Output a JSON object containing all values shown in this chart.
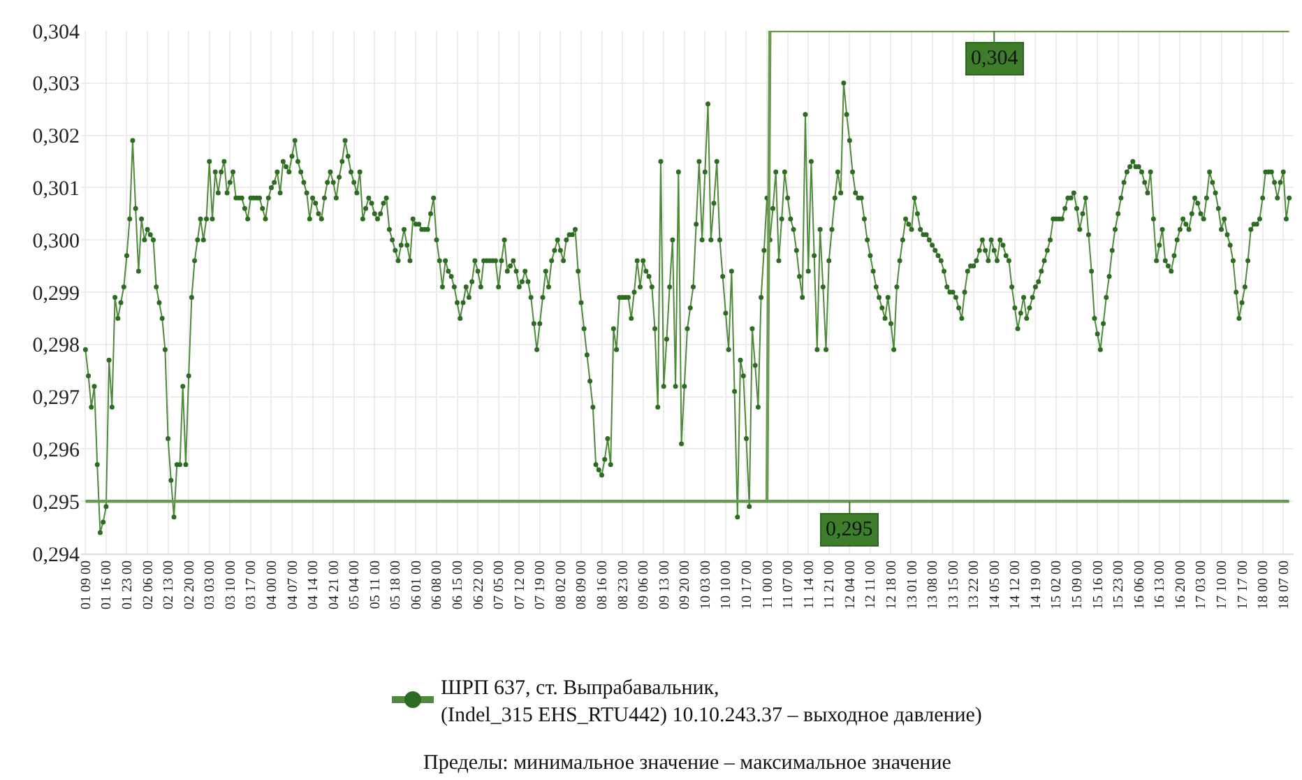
{
  "chart_data": {
    "type": "line",
    "categories": [
      "01 09 00",
      null,
      null,
      null,
      null,
      null,
      null,
      "01 16 00",
      null,
      null,
      null,
      null,
      null,
      null,
      "01 23 00",
      null,
      null,
      null,
      null,
      null,
      null,
      "02 06 00",
      null,
      null,
      null,
      null,
      null,
      null,
      "02 13 00",
      null,
      null,
      null,
      null,
      null,
      null,
      "02 20 00",
      null,
      null,
      null,
      null,
      null,
      null,
      "03 03 00",
      null,
      null,
      null,
      null,
      null,
      null,
      "03 10 00",
      null,
      null,
      null,
      null,
      null,
      null,
      "03 17 00",
      null,
      null,
      null,
      null,
      null,
      null,
      "04 00 00",
      null,
      null,
      null,
      null,
      null,
      null,
      "04 07 00",
      null,
      null,
      null,
      null,
      null,
      null,
      "04 14 00",
      null,
      null,
      null,
      null,
      null,
      null,
      "04 21 00",
      null,
      null,
      null,
      null,
      null,
      null,
      "05 04 00",
      null,
      null,
      null,
      null,
      null,
      null,
      "05 11 00",
      null,
      null,
      null,
      null,
      null,
      null,
      "05 18 00",
      null,
      null,
      null,
      null,
      null,
      null,
      "06 01 00",
      null,
      null,
      null,
      null,
      null,
      null,
      "06 08 00",
      null,
      null,
      null,
      null,
      null,
      null,
      "06 15 00",
      null,
      null,
      null,
      null,
      null,
      null,
      "06 22 00",
      null,
      null,
      null,
      null,
      null,
      null,
      "07 05 00",
      null,
      null,
      null,
      null,
      null,
      null,
      "07 12 00",
      null,
      null,
      null,
      null,
      null,
      null,
      "07 19 00",
      null,
      null,
      null,
      null,
      null,
      null,
      "08 02 00",
      null,
      null,
      null,
      null,
      null,
      null,
      "08 09 00",
      null,
      null,
      null,
      null,
      null,
      null,
      "08 16 00",
      null,
      null,
      null,
      null,
      null,
      null,
      "08 23 00",
      null,
      null,
      null,
      null,
      null,
      null,
      "09 06 00",
      null,
      null,
      null,
      null,
      null,
      null,
      "09 13 00",
      null,
      null,
      null,
      null,
      null,
      null,
      "09 20 00",
      null,
      null,
      null,
      null,
      null,
      null,
      "10 03 00",
      null,
      null,
      null,
      null,
      null,
      null,
      "10 10 00",
      null,
      null,
      null,
      null,
      null,
      null,
      "10 17 00",
      null,
      null,
      null,
      null,
      null,
      null,
      "11 00 00",
      null,
      null,
      null,
      null,
      null,
      null,
      "11 07 00",
      null,
      null,
      null,
      null,
      null,
      null,
      "11 14 00",
      null,
      null,
      null,
      null,
      null,
      null,
      "11 21 00",
      null,
      null,
      null,
      null,
      null,
      null,
      "12 04 00",
      null,
      null,
      null,
      null,
      null,
      null,
      "12 11 00",
      null,
      null,
      null,
      null,
      null,
      null,
      "12 18 00",
      null,
      null,
      null,
      null,
      null,
      null,
      "13 01 00",
      null,
      null,
      null,
      null,
      null,
      null,
      "13 08 00",
      null,
      null,
      null,
      null,
      null,
      null,
      "13 15 00",
      null,
      null,
      null,
      null,
      null,
      null,
      "13 22 00",
      null,
      null,
      null,
      null,
      null,
      null,
      "14 05 00",
      null,
      null,
      null,
      null,
      null,
      null,
      "14 12 00",
      null,
      null,
      null,
      null,
      null,
      null,
      "14 19 00",
      null,
      null,
      null,
      null,
      null,
      null,
      "15 02 00",
      null,
      null,
      null,
      null,
      null,
      null,
      "15 09 00",
      null,
      null,
      null,
      null,
      null,
      null,
      "15 16 00",
      null,
      null,
      null,
      null,
      null,
      null,
      "15 23 00",
      null,
      null,
      null,
      null,
      null,
      null,
      "16 06 00",
      null,
      null,
      null,
      null,
      null,
      null,
      "16 13 00",
      null,
      null,
      null,
      null,
      null,
      null,
      "16 20 00",
      null,
      null,
      null,
      null,
      null,
      null,
      "17 03 00",
      null,
      null,
      null,
      null,
      null,
      null,
      "17 10 00",
      null,
      null,
      null,
      null,
      null,
      null,
      "17 17 00",
      null,
      null,
      null,
      null,
      null,
      null,
      "18 00 00",
      null,
      null,
      null,
      null,
      null,
      null,
      "18 07 00",
      null,
      null
    ],
    "ylim": [
      0.294,
      0.304
    ],
    "yticks": [
      {
        "value": 0.294,
        "label": "0,294"
      },
      {
        "value": 0.295,
        "label": "0,295"
      },
      {
        "value": 0.296,
        "label": "0,296"
      },
      {
        "value": 0.297,
        "label": "0,297"
      },
      {
        "value": 0.298,
        "label": "0,298"
      },
      {
        "value": 0.299,
        "label": "0,299"
      },
      {
        "value": 0.3,
        "label": "0,300"
      },
      {
        "value": 0.301,
        "label": "0,301"
      },
      {
        "value": 0.302,
        "label": "0,302"
      },
      {
        "value": 0.303,
        "label": "0,303"
      },
      {
        "value": 0.304,
        "label": "0,304"
      }
    ],
    "grid": true,
    "legend": "bottom",
    "marker": "circle",
    "line_style": "solid",
    "series": [
      {
        "name": "ШРП 637, ст. Выпрабавальник,\n(Indel_315 EHS_RTU442) 10.10.243.37 – выходное давление)",
        "color": "#4f8a3c",
        "values": [
          0.2979,
          0.2974,
          0.2968,
          0.2972,
          0.2957,
          0.2944,
          0.2946,
          0.2949,
          0.2977,
          0.2968,
          0.2989,
          0.2985,
          0.2988,
          0.2991,
          0.2997,
          0.3004,
          0.3019,
          0.3006,
          0.2994,
          0.3004,
          0.3,
          0.3002,
          0.3001,
          0.3,
          0.2991,
          0.2988,
          0.2985,
          0.2979,
          0.2962,
          0.2954,
          0.2947,
          0.2957,
          0.2957,
          0.2972,
          0.2957,
          0.2974,
          0.2989,
          0.2996,
          0.3,
          0.3004,
          0.3,
          0.3004,
          0.3015,
          0.3004,
          0.3013,
          0.3009,
          0.3013,
          0.3015,
          0.3009,
          0.3011,
          0.3013,
          0.3008,
          0.3008,
          0.3008,
          0.3006,
          0.3004,
          0.3008,
          0.3008,
          0.3008,
          0.3008,
          0.3006,
          0.3004,
          0.3008,
          0.301,
          0.3011,
          0.3013,
          0.3009,
          0.3015,
          0.3014,
          0.3013,
          0.3016,
          0.3019,
          0.3015,
          0.3013,
          0.3011,
          0.3009,
          0.3004,
          0.3008,
          0.3007,
          0.3005,
          0.3004,
          0.3008,
          0.3011,
          0.3013,
          0.3011,
          0.3008,
          0.3012,
          0.3015,
          0.3019,
          0.3016,
          0.3013,
          0.3011,
          0.3009,
          0.3013,
          0.3004,
          0.3006,
          0.3008,
          0.3007,
          0.3005,
          0.3004,
          0.3005,
          0.3007,
          0.3008,
          0.3002,
          0.3,
          0.2998,
          0.2996,
          0.2999,
          0.3002,
          0.2999,
          0.2996,
          0.3004,
          0.3003,
          0.3003,
          0.3002,
          0.3002,
          0.3002,
          0.3005,
          0.3008,
          0.3,
          0.2996,
          0.2991,
          0.2996,
          0.2994,
          0.2993,
          0.2991,
          0.2988,
          0.2985,
          0.2988,
          0.2991,
          0.2989,
          0.2992,
          0.2996,
          0.2994,
          0.2991,
          0.2996,
          0.2996,
          0.2996,
          0.2996,
          0.2996,
          0.2991,
          0.2996,
          0.3,
          0.2994,
          0.2995,
          0.2996,
          0.2994,
          0.2991,
          0.2992,
          0.2994,
          0.2992,
          0.2989,
          0.2984,
          0.2979,
          0.2984,
          0.2989,
          0.2994,
          0.2991,
          0.2996,
          0.2998,
          0.3,
          0.2998,
          0.2996,
          0.3,
          0.3001,
          0.3001,
          0.3002,
          0.2994,
          0.2988,
          0.2983,
          0.2978,
          0.2973,
          0.2968,
          0.2957,
          0.2956,
          0.2955,
          0.2958,
          0.2962,
          0.2957,
          0.2983,
          0.2979,
          0.2989,
          0.2989,
          0.2989,
          0.2989,
          0.2985,
          0.299,
          0.2996,
          0.2991,
          0.2996,
          0.2994,
          0.2993,
          0.2991,
          0.2983,
          0.2968,
          0.3015,
          0.2972,
          0.2981,
          0.2991,
          0.3,
          0.2972,
          0.3013,
          0.2961,
          0.2972,
          0.2983,
          0.2987,
          0.2991,
          0.3003,
          0.3015,
          0.3,
          0.3013,
          0.3026,
          0.3,
          0.3007,
          0.3015,
          0.3,
          0.2993,
          0.2986,
          0.2979,
          0.2994,
          0.2971,
          0.2947,
          0.2977,
          0.2974,
          0.2962,
          0.2949,
          0.2983,
          0.2976,
          0.2968,
          0.2989,
          0.2998,
          0.3008,
          0.3,
          0.3006,
          0.3013,
          0.2996,
          0.3004,
          0.3013,
          0.3008,
          0.3004,
          0.3002,
          0.2998,
          0.2993,
          0.2989,
          0.3024,
          0.2994,
          0.3015,
          0.2997,
          0.2979,
          0.3002,
          0.2991,
          0.2979,
          0.2996,
          0.3002,
          0.3008,
          0.3013,
          0.3009,
          0.303,
          0.3024,
          0.3019,
          0.3013,
          0.3009,
          0.3008,
          0.3008,
          0.3004,
          0.3,
          0.2997,
          0.2994,
          0.2991,
          0.2989,
          0.2987,
          0.2985,
          0.2989,
          0.2984,
          0.2979,
          0.2991,
          0.2996,
          0.3,
          0.3004,
          0.3003,
          0.3002,
          0.3008,
          0.3005,
          0.3002,
          0.3001,
          0.3001,
          0.3,
          0.2999,
          0.2998,
          0.2997,
          0.2996,
          0.2994,
          0.2991,
          0.299,
          0.299,
          0.2989,
          0.2987,
          0.2985,
          0.299,
          0.2994,
          0.2995,
          0.2995,
          0.2996,
          0.2998,
          0.3,
          0.2998,
          0.2996,
          0.3,
          0.2998,
          0.2996,
          0.3,
          0.2999,
          0.2997,
          0.2996,
          0.2991,
          0.2987,
          0.2983,
          0.2986,
          0.2989,
          0.2985,
          0.2987,
          0.2989,
          0.2991,
          0.2992,
          0.2994,
          0.2996,
          0.2998,
          0.3,
          0.3004,
          0.3004,
          0.3004,
          0.3004,
          0.3006,
          0.3008,
          0.3008,
          0.3009,
          0.3006,
          0.3002,
          0.3005,
          0.3008,
          0.3001,
          0.2994,
          0.2985,
          0.2982,
          0.2979,
          0.2984,
          0.2989,
          0.2993,
          0.2998,
          0.3002,
          0.3005,
          0.3008,
          0.3011,
          0.3013,
          0.3014,
          0.3015,
          0.3014,
          0.3014,
          0.3013,
          0.3011,
          0.3009,
          0.3013,
          0.3004,
          0.2996,
          0.2999,
          0.3002,
          0.2996,
          0.2995,
          0.2994,
          0.2997,
          0.3,
          0.3002,
          0.3004,
          0.3003,
          0.3002,
          0.3005,
          0.3008,
          0.3007,
          0.3005,
          0.3004,
          0.3008,
          0.3013,
          0.3011,
          0.3009,
          0.3006,
          0.3002,
          0.3004,
          0.3001,
          0.2999,
          0.2996,
          0.299,
          0.2985,
          0.2988,
          0.2991,
          0.2996,
          0.3002,
          0.3003,
          0.3003,
          0.3004,
          0.3008,
          0.3013,
          0.3013,
          0.3013,
          0.3011,
          0.3008,
          0.3011,
          0.3013,
          0.3004,
          0.3008
        ]
      },
      {
        "color": "#6b9a52",
        "marker": "none",
        "values": [
          null,
          null,
          null,
          null,
          null,
          null,
          null,
          null,
          null,
          null,
          null,
          null,
          null,
          null,
          null,
          null,
          null,
          null,
          null,
          null,
          null,
          null,
          null,
          null,
          null,
          null,
          null,
          null,
          null,
          null,
          null,
          null,
          null,
          null,
          null,
          null,
          null,
          null,
          null,
          null,
          null,
          null,
          null,
          null,
          null,
          null,
          null,
          null,
          null,
          null,
          null,
          null,
          null,
          null,
          null,
          null,
          null,
          null,
          null,
          null,
          null,
          null,
          null,
          null,
          null,
          null,
          null,
          null,
          null,
          null,
          null,
          null,
          null,
          null,
          null,
          null,
          null,
          null,
          null,
          null,
          null,
          null,
          null,
          null,
          null,
          null,
          null,
          null,
          null,
          null,
          null,
          null,
          null,
          null,
          null,
          null,
          null,
          null,
          null,
          null,
          null,
          null,
          null,
          null,
          null,
          null,
          null,
          null,
          null,
          null,
          null,
          null,
          null,
          null,
          null,
          null,
          null,
          null,
          null,
          null,
          null,
          null,
          null,
          null,
          null,
          null,
          null,
          null,
          null,
          null,
          null,
          null,
          null,
          null,
          null,
          null,
          null,
          null,
          null,
          null,
          null,
          null,
          null,
          null,
          null,
          null,
          null,
          null,
          null,
          null,
          null,
          null,
          null,
          null,
          null,
          null,
          null,
          null,
          null,
          null,
          null,
          null,
          null,
          null,
          null,
          null,
          null,
          null,
          null,
          null,
          null,
          null,
          null,
          null,
          null,
          null,
          null,
          null,
          null,
          null,
          null,
          null,
          null,
          null,
          null,
          null,
          null,
          null,
          null,
          null,
          null,
          null,
          null,
          null,
          null,
          null,
          null,
          null,
          null,
          null,
          null,
          null,
          null,
          null,
          null,
          null,
          null,
          null,
          null,
          null,
          null,
          null,
          null,
          null,
          null,
          null,
          null,
          null,
          null,
          null,
          null,
          null,
          null,
          null,
          null,
          null,
          null,
          null,
          null,
          null,
          null,
          0.295,
          0.304,
          0.304,
          0.304,
          0.304,
          0.304,
          0.304,
          0.304,
          0.304,
          0.304,
          0.304,
          0.304,
          0.304,
          0.304,
          0.304,
          0.304,
          0.304,
          0.304,
          0.304,
          0.304,
          0.304,
          0.304,
          0.304,
          0.304,
          0.304,
          0.304,
          0.304,
          0.304,
          0.304,
          0.304,
          0.304,
          0.304,
          0.304,
          0.304,
          0.304,
          0.304,
          0.304,
          0.304,
          0.304,
          0.304,
          0.304,
          0.304,
          0.304,
          0.304,
          0.304,
          0.304,
          0.304,
          0.304,
          0.304,
          0.304,
          0.304,
          0.304,
          0.304,
          0.304,
          0.304,
          0.304,
          0.304,
          0.304,
          0.304,
          0.304,
          0.304,
          0.304,
          0.304,
          0.304,
          0.304,
          0.304,
          0.304,
          0.304,
          0.304,
          0.304,
          0.304,
          0.304,
          0.304,
          0.304,
          0.304,
          0.304,
          0.304,
          0.304,
          0.304,
          0.304,
          0.304,
          0.304,
          0.304,
          0.304,
          0.304,
          0.304,
          0.304,
          0.304,
          0.304,
          0.304,
          0.304,
          0.304,
          0.304,
          0.304,
          0.304,
          0.304,
          0.304,
          0.304,
          0.304,
          0.304,
          0.304,
          0.304,
          0.304,
          0.304,
          0.304,
          0.304,
          0.304,
          0.304,
          0.304,
          0.304,
          0.304,
          0.304,
          0.304,
          0.304,
          0.304,
          0.304,
          0.304,
          0.304,
          0.304,
          0.304,
          0.304,
          0.304,
          0.304,
          0.304,
          0.304,
          0.304,
          0.304,
          0.304,
          0.304,
          0.304,
          0.304,
          0.304,
          0.304,
          0.304,
          0.304,
          0.304,
          0.304,
          0.304,
          0.304,
          0.304,
          0.304,
          0.304,
          0.304,
          0.304,
          0.304,
          0.304,
          0.304,
          0.304,
          0.304,
          0.304,
          0.304,
          0.304,
          0.304,
          0.304,
          0.304,
          0.304,
          0.304,
          0.304,
          0.304,
          0.304,
          0.304,
          0.304,
          0.304,
          0.304,
          0.304,
          0.304,
          0.304,
          0.304,
          0.304,
          0.304,
          0.304,
          0.304,
          0.304,
          0.304,
          0.304,
          0.304,
          0.304,
          0.304
        ]
      }
    ],
    "ref_lines": [
      {
        "axis": "y",
        "value": 0.295,
        "color": "#6b9a52"
      }
    ],
    "annotations": [
      {
        "text": "0,304",
        "x": "14 05 00",
        "y": 0.304
      },
      {
        "text": "0,295",
        "x": "12 04 00",
        "y": 0.295
      },
      "Пределы: минимальное значение – максимальное значение"
    ]
  }
}
